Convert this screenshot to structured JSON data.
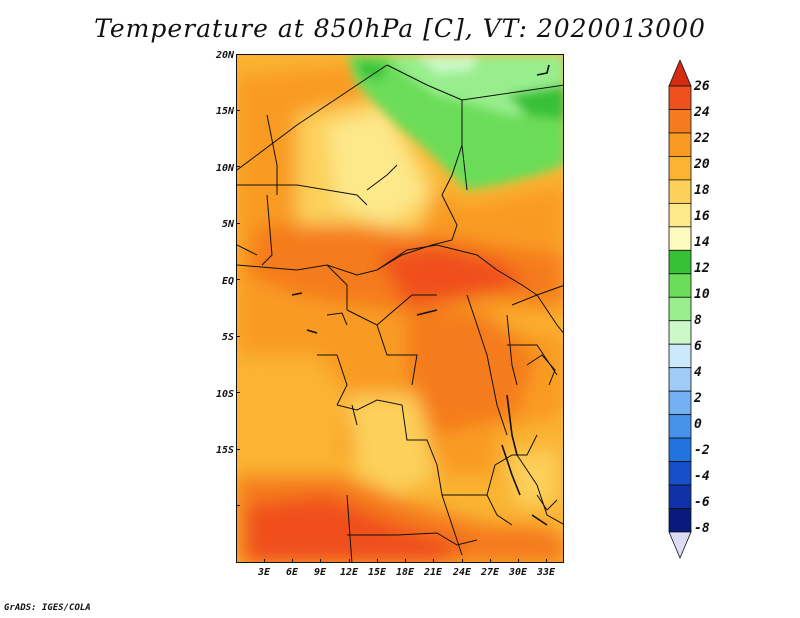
{
  "title": "Temperature at 850hPa [C], VT: 2020013000",
  "credit": "GrADS: IGES/COLA",
  "map": {
    "region": "Central Africa",
    "variable": "Temperature at 850hPa",
    "units": "C",
    "valid_time": "2020013000",
    "lat_labels": [
      "20N",
      "15N",
      "10N",
      "5N",
      "EQ",
      "5S",
      "10S",
      "15S"
    ],
    "lon_labels": [
      "3E",
      "6E",
      "9E",
      "12E",
      "15E",
      "18E",
      "21E",
      "24E",
      "27E",
      "30E",
      "33E"
    ]
  },
  "colorbar": {
    "labels": [
      "26",
      "24",
      "22",
      "20",
      "18",
      "16",
      "14",
      "12",
      "10",
      "8",
      "6",
      "4",
      "2",
      "0",
      "-2",
      "-4",
      "-6",
      "-8"
    ],
    "colors": [
      "#d62c14",
      "#f0501e",
      "#f57b1e",
      "#f99b23",
      "#fab432",
      "#fcd05a",
      "#fde88a",
      "#fefbbe",
      "#37c137",
      "#6cdd59",
      "#98ee8c",
      "#ccf9c7",
      "#cce9fb",
      "#9fcdf7",
      "#72b0f2",
      "#4793e9",
      "#2173df",
      "#1550c8",
      "#0f32a8",
      "#0a1a7c",
      "#dcdcf5"
    ]
  }
}
